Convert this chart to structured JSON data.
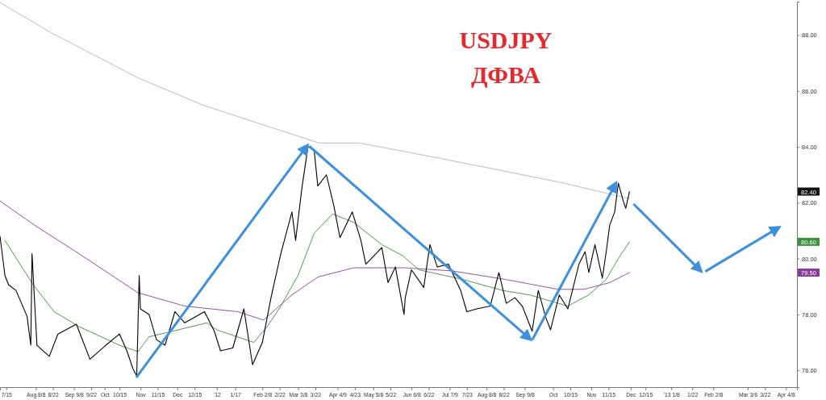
{
  "chart_data": {
    "type": "line",
    "title": "USDJPY",
    "subtitle": "ДФВА",
    "xlim": [
      "2011-07-10",
      "2013-04-17"
    ],
    "ylim": [
      75.4,
      89.2
    ],
    "yticks": [
      {
        "value": 76,
        "label": "76.00"
      },
      {
        "value": 78,
        "label": "78.00"
      },
      {
        "value": 80,
        "label": "80.00"
      },
      {
        "value": 82,
        "label": "82.00"
      },
      {
        "value": 84,
        "label": "84.00"
      },
      {
        "value": 86,
        "label": "86.00"
      },
      {
        "value": 88,
        "label": "88.00"
      }
    ],
    "xticks": [
      {
        "value": "2011-07-15",
        "label": "7/15"
      },
      {
        "value": "2011-08-08",
        "label": "Aug 8/8"
      },
      {
        "value": "2011-08-22",
        "label": "8/22"
      },
      {
        "value": "2011-09-08",
        "label": "Sep 9/8"
      },
      {
        "value": "2011-09-22",
        "label": "9/22"
      },
      {
        "value": "2011-10-03",
        "label": "Oct"
      },
      {
        "value": "2011-10-15",
        "label": "10/15"
      },
      {
        "value": "2011-11-01",
        "label": "Nov"
      },
      {
        "value": "2011-11-15",
        "label": "11/15"
      },
      {
        "value": "2011-12-01",
        "label": "Dec"
      },
      {
        "value": "2011-12-15",
        "label": "12/15"
      },
      {
        "value": "2012-01-02",
        "label": "'12"
      },
      {
        "value": "2012-01-17",
        "label": "1/17"
      },
      {
        "value": "2012-02-08",
        "label": "Feb 2/8"
      },
      {
        "value": "2012-02-22",
        "label": "2/22"
      },
      {
        "value": "2012-03-08",
        "label": "Mar 3/8"
      },
      {
        "value": "2012-03-22",
        "label": "3/22"
      },
      {
        "value": "2012-04-09",
        "label": "Apr 4/9"
      },
      {
        "value": "2012-04-23",
        "label": "4/23"
      },
      {
        "value": "2012-05-08",
        "label": "May 5/8"
      },
      {
        "value": "2012-05-22",
        "label": "5/22"
      },
      {
        "value": "2012-06-08",
        "label": "Jun 6/8"
      },
      {
        "value": "2012-06-22",
        "label": "6/22"
      },
      {
        "value": "2012-07-09",
        "label": "Jul 7/9"
      },
      {
        "value": "2012-07-23",
        "label": "7/23"
      },
      {
        "value": "2012-08-08",
        "label": "Aug 8/8"
      },
      {
        "value": "2012-08-22",
        "label": "8/22"
      },
      {
        "value": "2012-09-08",
        "label": "Sep 9/8"
      },
      {
        "value": "2012-10-01",
        "label": "Oct"
      },
      {
        "value": "2012-10-15",
        "label": "10/15"
      },
      {
        "value": "2012-11-01",
        "label": "Nov"
      },
      {
        "value": "2012-11-15",
        "label": "11/15"
      },
      {
        "value": "2012-12-03",
        "label": "Dec"
      },
      {
        "value": "2012-12-15",
        "label": "12/15"
      },
      {
        "value": "2013-01-05",
        "label": "'13 1/8"
      },
      {
        "value": "2013-01-22",
        "label": "1/22"
      },
      {
        "value": "2013-02-08",
        "label": "Feb 2/8"
      },
      {
        "value": "2013-03-08",
        "label": "Mar 3/8"
      },
      {
        "value": "2013-03-22",
        "label": "3/22"
      },
      {
        "value": "2013-04-08",
        "label": "Apr 4/8"
      }
    ],
    "series": [
      {
        "color": "#000000",
        "x": [
          "2011-07-10",
          "2011-07-14",
          "2011-07-17",
          "2011-07-23",
          "2011-08-01",
          "2011-08-04",
          "2011-08-05",
          "2011-08-09",
          "2011-08-19",
          "2011-08-26",
          "2011-09-10",
          "2011-09-21",
          "2011-10-04",
          "2011-10-15",
          "2011-10-21",
          "2011-10-26",
          "2011-10-29",
          "2011-10-31",
          "2011-11-01",
          "2011-11-08",
          "2011-11-14",
          "2011-11-21",
          "2011-11-29",
          "2011-12-07",
          "2011-12-23",
          "2011-12-31",
          "2012-01-05",
          "2012-01-15",
          "2012-01-24",
          "2012-01-31",
          "2012-02-08",
          "2012-02-15",
          "2012-02-23",
          "2012-03-03",
          "2012-03-06",
          "2012-03-11",
          "2012-03-16",
          "2012-03-21",
          "2012-03-24",
          "2012-03-31",
          "2012-04-06",
          "2012-04-11",
          "2012-04-21",
          "2012-04-28",
          "2012-05-02",
          "2012-05-15",
          "2012-05-20",
          "2012-05-26",
          "2012-06-02",
          "2012-06-03",
          "2012-06-08",
          "2012-06-18",
          "2012-06-23",
          "2012-06-29",
          "2012-07-08",
          "2012-07-18",
          "2012-07-23",
          "2012-07-31",
          "2012-08-11",
          "2012-08-18",
          "2012-08-24",
          "2012-08-31",
          "2012-09-06",
          "2012-09-14",
          "2012-09-19",
          "2012-09-25",
          "2012-09-29",
          "2012-10-06",
          "2012-10-13",
          "2012-10-22",
          "2012-10-27",
          "2012-10-30",
          "2012-11-04",
          "2012-11-10",
          "2012-11-13",
          "2012-11-16",
          "2012-11-20",
          "2012-11-23",
          "2012-11-27",
          "2012-11-29",
          "2012-12-02"
        ],
        "values": [
          80.8,
          79.4,
          79.06,
          78.86,
          77.93,
          76.9,
          80.18,
          76.9,
          76.5,
          77.3,
          77.65,
          76.4,
          76.9,
          77.3,
          76.7,
          76.05,
          75.8,
          79.4,
          78.2,
          78.0,
          77.1,
          76.9,
          78.1,
          77.7,
          78.1,
          77.4,
          76.7,
          76.8,
          78.2,
          76.2,
          77.0,
          78.6,
          80.18,
          81.67,
          80.65,
          82.5,
          84.0,
          83.9,
          82.6,
          83.0,
          81.9,
          80.75,
          81.67,
          80.65,
          79.8,
          80.4,
          79.14,
          79.7,
          78.0,
          78.6,
          79.6,
          78.97,
          80.5,
          79.7,
          79.8,
          78.86,
          78.1,
          78.2,
          78.3,
          79.5,
          78.4,
          78.6,
          78.3,
          77.4,
          78.86,
          77.9,
          77.45,
          78.7,
          78.2,
          79.8,
          80.25,
          79.5,
          80.5,
          79.3,
          80.2,
          81.2,
          81.67,
          82.7,
          82.06,
          81.8,
          82.4
        ]
      },
      {
        "color": "#3c8f3c",
        "x": [
          "2011-07-14",
          "2011-08-06",
          "2011-08-23",
          "2011-09-12",
          "2011-10-15",
          "2011-10-30",
          "2011-11-08",
          "2011-11-27",
          "2011-12-25",
          "2012-01-02",
          "2012-02-01",
          "2012-02-12",
          "2012-02-23",
          "2012-03-08",
          "2012-03-21",
          "2012-04-05",
          "2012-04-22",
          "2012-05-15",
          "2012-06-01",
          "2012-06-14",
          "2012-07-20",
          "2012-08-21",
          "2012-09-12",
          "2012-10-13",
          "2012-10-30",
          "2012-11-13",
          "2012-11-23",
          "2012-12-02"
        ],
        "values": [
          80.65,
          79.06,
          78.1,
          77.57,
          76.9,
          76.67,
          77.2,
          77.4,
          77.7,
          77.45,
          77.0,
          77.57,
          78.3,
          79.4,
          80.9,
          81.6,
          81.3,
          80.5,
          80.1,
          79.6,
          79.25,
          78.86,
          78.7,
          78.3,
          78.7,
          79.25,
          80.0,
          80.6
        ]
      },
      {
        "color": "#8a3c9a",
        "x": [
          "2011-07-10",
          "2011-08-07",
          "2011-09-12",
          "2011-10-30",
          "2011-12-07",
          "2012-01-19",
          "2012-02-09",
          "2012-03-03",
          "2012-03-24",
          "2012-04-22",
          "2012-06-03",
          "2012-07-11",
          "2012-08-24",
          "2012-10-05",
          "2012-10-26",
          "2012-11-16",
          "2012-12-02"
        ],
        "values": [
          82.06,
          81.2,
          80.18,
          78.78,
          78.3,
          78.1,
          77.8,
          78.7,
          79.34,
          79.67,
          79.67,
          79.56,
          79.25,
          78.9,
          78.9,
          79.14,
          79.5
        ]
      },
      {
        "color": "#b4b4b4",
        "x": [
          "2011-07-10",
          "2011-08-20",
          "2011-10-30",
          "2011-12-22",
          "2012-02-17",
          "2012-03-25",
          "2012-04-26",
          "2012-06-03",
          "2012-08-07",
          "2012-10-10",
          "2012-11-18",
          "2012-12-02"
        ],
        "values": [
          89.17,
          88.1,
          86.47,
          85.49,
          84.67,
          84.14,
          84.14,
          83.83,
          83.27,
          82.7,
          82.29,
          82.15
        ]
      }
    ],
    "annotations": [
      "82.40",
      "80.60",
      "79.50"
    ],
    "grid": false,
    "marker": "none",
    "line_style": "solid"
  }
}
